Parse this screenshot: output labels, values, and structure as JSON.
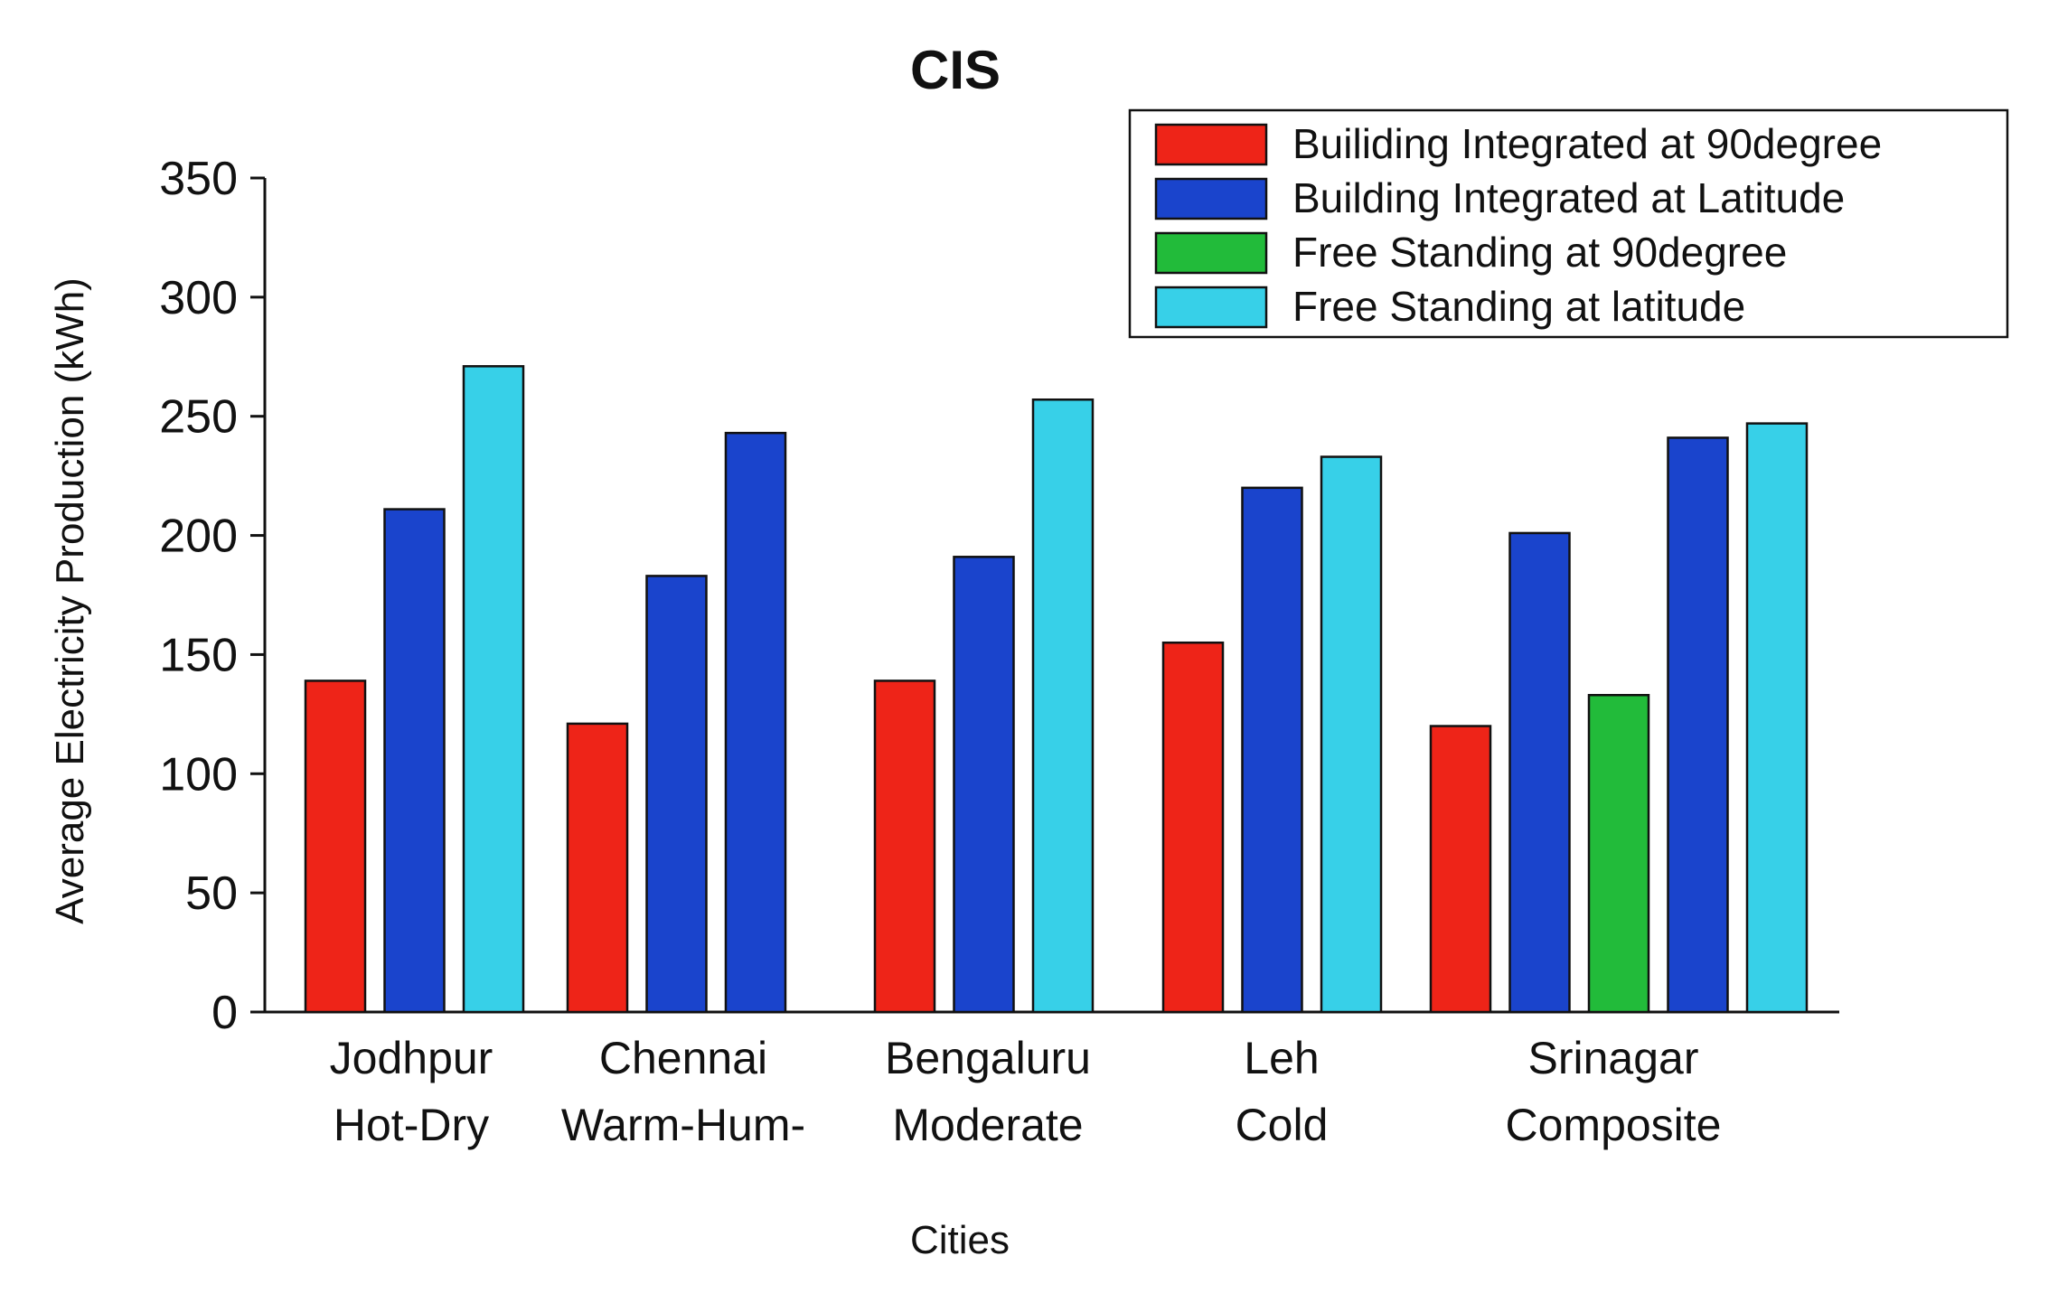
{
  "chart_data": {
    "type": "bar",
    "title": "CIS",
    "xlabel": "Cities",
    "ylabel": "Average Electricity Production (kWh)",
    "ylim": [
      0,
      350
    ],
    "yticks": [
      0,
      50,
      100,
      150,
      200,
      250,
      300,
      350
    ],
    "legend_position": "top-right",
    "grid": false,
    "groups": [
      {
        "city": "Jodhpur",
        "climate": "Hot-Dry",
        "bars": [
          {
            "series": "Builiding Integrated at 90degree",
            "value": 139
          },
          {
            "series": "Building Integrated at Latitude",
            "value": 211
          },
          {
            "series": "Free Standing at latitude",
            "value": 271
          }
        ]
      },
      {
        "city": "Chennai",
        "climate": "Warm-Hum-",
        "bars": [
          {
            "series": "Builiding Integrated at 90degree",
            "value": 121
          },
          {
            "series": "Building Integrated at Latitude",
            "value": 183
          },
          {
            "series": "Building Integrated at Latitude",
            "value": 243
          }
        ]
      },
      {
        "city": "Bengaluru",
        "climate": "Moderate",
        "bars": [
          {
            "series": "Builiding Integrated at 90degree",
            "value": 139
          },
          {
            "series": "Building Integrated at Latitude",
            "value": 191
          },
          {
            "series": "Free Standing at latitude",
            "value": 257
          }
        ]
      },
      {
        "city": "Leh",
        "climate": "Cold",
        "bars": [
          {
            "series": "Builiding Integrated at 90degree",
            "value": 155
          },
          {
            "series": "Building Integrated at Latitude",
            "value": 220
          },
          {
            "series": "Free Standing at latitude",
            "value": 233
          }
        ]
      },
      {
        "city": "Srinagar",
        "climate": "Composite",
        "bars": [
          {
            "series": "Builiding Integrated at 90degree",
            "value": 120
          },
          {
            "series": "Building Integrated at Latitude",
            "value": 201
          },
          {
            "series": "Free Standing at 90degree",
            "value": 133
          },
          {
            "series": "Building Integrated at Latitude",
            "value": 241
          },
          {
            "series": "Free Standing at latitude",
            "value": 247
          }
        ]
      }
    ],
    "legend": [
      {
        "label": "Builiding Integrated at 90degree",
        "color": "#ee2418"
      },
      {
        "label": "Building Integrated at Latitude",
        "color": "#1a44cc"
      },
      {
        "label": "Free Standing at 90degree",
        "color": "#22bb3a"
      },
      {
        "label": "Free Standing at latitude",
        "color": "#37d0e8"
      }
    ]
  }
}
